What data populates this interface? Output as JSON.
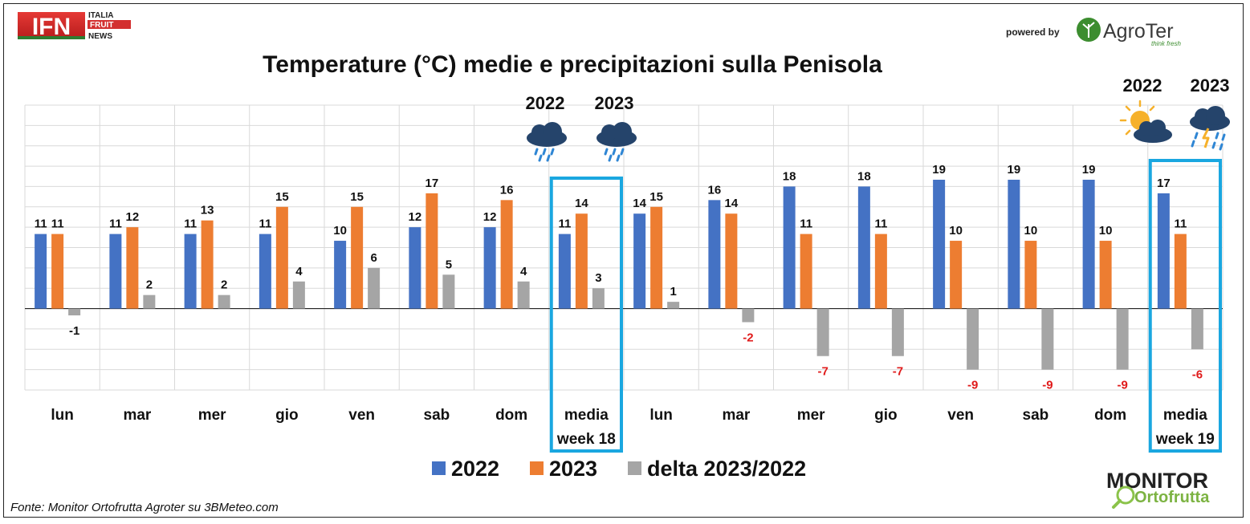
{
  "header": {
    "logo_left": {
      "main": "IFN",
      "lines": [
        "ITALIA",
        "FRUIT",
        "NEWS"
      ]
    },
    "powered_by": "powered by",
    "logo_right": {
      "name": "AgroTer",
      "tagline": "think fresh"
    }
  },
  "footer": {
    "source": "Fonte: Monitor Ortofrutta Agroter su 3BMeteo.com",
    "logo": {
      "line1": "MONITOR",
      "line2": "Ortofrutta"
    }
  },
  "weather": {
    "week18": {
      "year_a": "2022",
      "year_b": "2023",
      "icon_a": "rain-cloud-icon",
      "icon_b": "rain-cloud-icon"
    },
    "week19": {
      "year_a": "2022",
      "year_b": "2023",
      "icon_a": "sun-cloud-icon",
      "icon_b": "storm-rain-icon"
    }
  },
  "colors": {
    "s2022": "#4472c4",
    "s2023": "#ed7d31",
    "delta": "#a5a5a5",
    "highlight": "#1aa7e0",
    "negative": "#e01b1b",
    "grid": "#d9d9d9"
  },
  "chart_data": {
    "type": "bar",
    "title": "Temperature (°C) medie e precipitazioni sulla Penisola",
    "categories": [
      "lun",
      "mar",
      "mer",
      "gio",
      "ven",
      "sab",
      "dom",
      "media week 18",
      "lun",
      "mar",
      "mer",
      "gio",
      "ven",
      "sab",
      "dom",
      "media week 19"
    ],
    "series": [
      {
        "name": "2022",
        "values": [
          11,
          11,
          11,
          11,
          10,
          12,
          12,
          11,
          14,
          16,
          18,
          18,
          19,
          19,
          19,
          17
        ]
      },
      {
        "name": "2023",
        "values": [
          11,
          12,
          13,
          15,
          15,
          17,
          16,
          14,
          15,
          14,
          11,
          11,
          10,
          10,
          10,
          11
        ]
      },
      {
        "name": "delta 2023/2022",
        "values": [
          -1,
          2,
          2,
          4,
          6,
          5,
          4,
          3,
          1,
          -2,
          -7,
          -7,
          -9,
          -9,
          -9,
          -6
        ]
      }
    ],
    "highlighted_categories": [
      "media week 18",
      "media week 19"
    ],
    "ylim": [
      -12,
      30
    ],
    "grid": true,
    "legend_position": "bottom"
  }
}
